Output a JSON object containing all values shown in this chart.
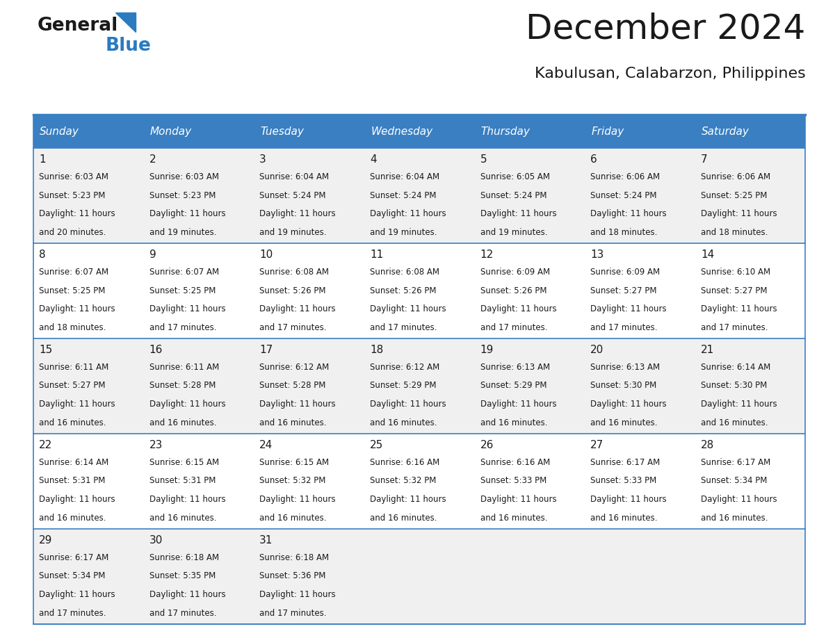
{
  "title": "December 2024",
  "subtitle": "Kabulusan, Calabarzon, Philippines",
  "header_bg_color": "#3a7fc1",
  "header_text_color": "#ffffff",
  "cell_bg_color_odd": "#f0f0f0",
  "cell_bg_color_even": "#ffffff",
  "grid_line_color": "#3a7fc1",
  "days_of_week": [
    "Sunday",
    "Monday",
    "Tuesday",
    "Wednesday",
    "Thursday",
    "Friday",
    "Saturday"
  ],
  "weeks": [
    [
      {
        "day": 1,
        "sunrise": "6:03 AM",
        "sunset": "5:23 PM",
        "daylight_min": "20"
      },
      {
        "day": 2,
        "sunrise": "6:03 AM",
        "sunset": "5:23 PM",
        "daylight_min": "19"
      },
      {
        "day": 3,
        "sunrise": "6:04 AM",
        "sunset": "5:24 PM",
        "daylight_min": "19"
      },
      {
        "day": 4,
        "sunrise": "6:04 AM",
        "sunset": "5:24 PM",
        "daylight_min": "19"
      },
      {
        "day": 5,
        "sunrise": "6:05 AM",
        "sunset": "5:24 PM",
        "daylight_min": "19"
      },
      {
        "day": 6,
        "sunrise": "6:06 AM",
        "sunset": "5:24 PM",
        "daylight_min": "18"
      },
      {
        "day": 7,
        "sunrise": "6:06 AM",
        "sunset": "5:25 PM",
        "daylight_min": "18"
      }
    ],
    [
      {
        "day": 8,
        "sunrise": "6:07 AM",
        "sunset": "5:25 PM",
        "daylight_min": "18"
      },
      {
        "day": 9,
        "sunrise": "6:07 AM",
        "sunset": "5:25 PM",
        "daylight_min": "17"
      },
      {
        "day": 10,
        "sunrise": "6:08 AM",
        "sunset": "5:26 PM",
        "daylight_min": "17"
      },
      {
        "day": 11,
        "sunrise": "6:08 AM",
        "sunset": "5:26 PM",
        "daylight_min": "17"
      },
      {
        "day": 12,
        "sunrise": "6:09 AM",
        "sunset": "5:26 PM",
        "daylight_min": "17"
      },
      {
        "day": 13,
        "sunrise": "6:09 AM",
        "sunset": "5:27 PM",
        "daylight_min": "17"
      },
      {
        "day": 14,
        "sunrise": "6:10 AM",
        "sunset": "5:27 PM",
        "daylight_min": "17"
      }
    ],
    [
      {
        "day": 15,
        "sunrise": "6:11 AM",
        "sunset": "5:27 PM",
        "daylight_min": "16"
      },
      {
        "day": 16,
        "sunrise": "6:11 AM",
        "sunset": "5:28 PM",
        "daylight_min": "16"
      },
      {
        "day": 17,
        "sunrise": "6:12 AM",
        "sunset": "5:28 PM",
        "daylight_min": "16"
      },
      {
        "day": 18,
        "sunrise": "6:12 AM",
        "sunset": "5:29 PM",
        "daylight_min": "16"
      },
      {
        "day": 19,
        "sunrise": "6:13 AM",
        "sunset": "5:29 PM",
        "daylight_min": "16"
      },
      {
        "day": 20,
        "sunrise": "6:13 AM",
        "sunset": "5:30 PM",
        "daylight_min": "16"
      },
      {
        "day": 21,
        "sunrise": "6:14 AM",
        "sunset": "5:30 PM",
        "daylight_min": "16"
      }
    ],
    [
      {
        "day": 22,
        "sunrise": "6:14 AM",
        "sunset": "5:31 PM",
        "daylight_min": "16"
      },
      {
        "day": 23,
        "sunrise": "6:15 AM",
        "sunset": "5:31 PM",
        "daylight_min": "16"
      },
      {
        "day": 24,
        "sunrise": "6:15 AM",
        "sunset": "5:32 PM",
        "daylight_min": "16"
      },
      {
        "day": 25,
        "sunrise": "6:16 AM",
        "sunset": "5:32 PM",
        "daylight_min": "16"
      },
      {
        "day": 26,
        "sunrise": "6:16 AM",
        "sunset": "5:33 PM",
        "daylight_min": "16"
      },
      {
        "day": 27,
        "sunrise": "6:17 AM",
        "sunset": "5:33 PM",
        "daylight_min": "16"
      },
      {
        "day": 28,
        "sunrise": "6:17 AM",
        "sunset": "5:34 PM",
        "daylight_min": "16"
      }
    ],
    [
      {
        "day": 29,
        "sunrise": "6:17 AM",
        "sunset": "5:34 PM",
        "daylight_min": "17"
      },
      {
        "day": 30,
        "sunrise": "6:18 AM",
        "sunset": "5:35 PM",
        "daylight_min": "17"
      },
      {
        "day": 31,
        "sunrise": "6:18 AM",
        "sunset": "5:36 PM",
        "daylight_min": "17"
      },
      null,
      null,
      null,
      null
    ]
  ],
  "logo_color_general": "#1a1a1a",
  "logo_color_blue": "#2a7bbf",
  "title_fontsize": 36,
  "subtitle_fontsize": 16,
  "dayname_fontsize": 11,
  "daynum_fontsize": 11,
  "cell_text_fontsize": 8.5
}
